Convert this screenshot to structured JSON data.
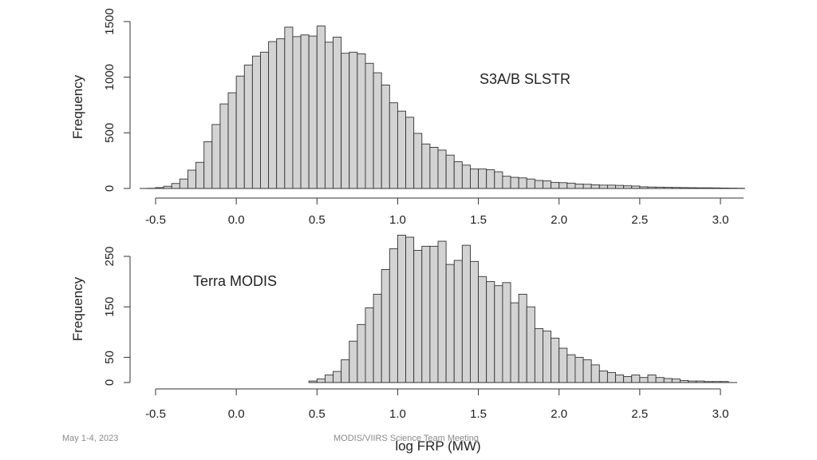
{
  "footer": {
    "date": "May 1-4, 2023",
    "center": "MODIS/VIIRS Science Team Meeting"
  },
  "chart_data": [
    {
      "type": "bar",
      "subtype": "histogram",
      "annotation": "S3A/B SLSTR",
      "xlabel": "",
      "ylabel": "Frequency",
      "xlim": [
        -0.5,
        3.1
      ],
      "ylim": [
        0,
        1500
      ],
      "xticks": [
        -0.5,
        0.0,
        0.5,
        1.0,
        1.5,
        2.0,
        2.5,
        3.0
      ],
      "xtick_labels": [
        "-0.5",
        "0.0",
        "0.5",
        "1.0",
        "1.5",
        "2.0",
        "2.5",
        "3.0"
      ],
      "yticks": [
        0,
        500,
        1000,
        1500
      ],
      "ytick_labels": [
        "0",
        "500",
        "1000",
        "1500"
      ],
      "bin_start": -0.55,
      "bin_width": 0.05,
      "values": [
        2,
        8,
        20,
        45,
        85,
        165,
        235,
        420,
        575,
        760,
        860,
        1010,
        1110,
        1190,
        1225,
        1320,
        1345,
        1450,
        1365,
        1380,
        1370,
        1460,
        1315,
        1360,
        1215,
        1225,
        1210,
        1125,
        1040,
        930,
        770,
        695,
        640,
        495,
        400,
        370,
        345,
        300,
        240,
        210,
        175,
        175,
        168,
        150,
        110,
        100,
        95,
        85,
        72,
        68,
        55,
        52,
        48,
        40,
        38,
        33,
        30,
        30,
        28,
        24,
        22,
        15,
        13,
        12,
        10,
        9,
        8,
        7,
        6,
        6,
        5,
        4,
        3,
        2
      ]
    },
    {
      "type": "bar",
      "subtype": "histogram",
      "annotation": "Terra MODIS",
      "xlabel": "log FRP (MW)",
      "ylabel": "Frequency",
      "xlim": [
        -0.5,
        3.1
      ],
      "ylim": [
        0,
        280
      ],
      "xticks": [
        -0.5,
        0.0,
        0.5,
        1.0,
        1.5,
        2.0,
        2.5,
        3.0
      ],
      "xtick_labels": [
        "-0.5",
        "0.0",
        "0.5",
        "1.0",
        "1.5",
        "2.0",
        "2.5",
        "3.0"
      ],
      "yticks": [
        0,
        50,
        150,
        250
      ],
      "ytick_labels": [
        "0",
        "50",
        "150",
        "250"
      ],
      "bin_start": 0.45,
      "bin_width": 0.05,
      "values": [
        3,
        7,
        15,
        22,
        45,
        82,
        115,
        148,
        175,
        224,
        265,
        292,
        288,
        262,
        270,
        270,
        280,
        234,
        242,
        272,
        240,
        210,
        200,
        192,
        198,
        158,
        175,
        150,
        107,
        102,
        88,
        68,
        55,
        50,
        45,
        35,
        23,
        20,
        15,
        12,
        15,
        10,
        15,
        10,
        8,
        7,
        4,
        3,
        3,
        2,
        2,
        2
      ]
    }
  ]
}
